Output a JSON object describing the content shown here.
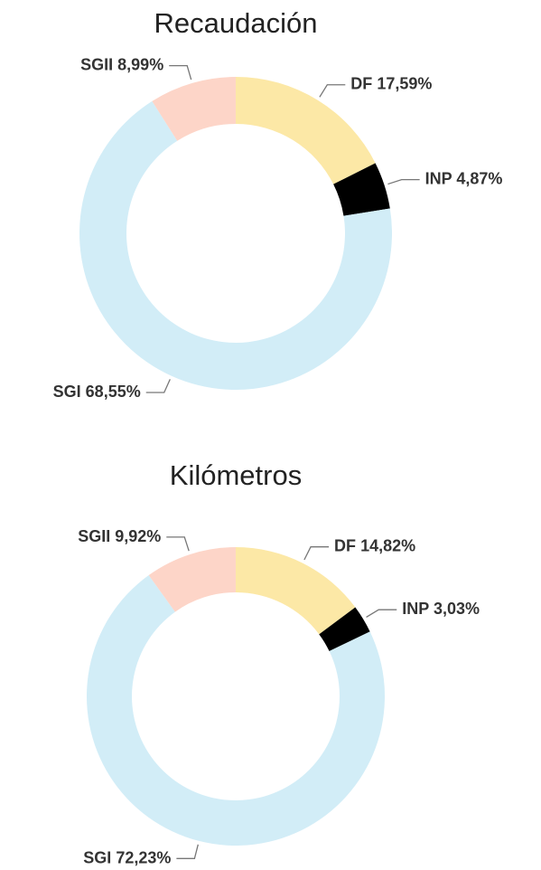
{
  "chart_data": [
    {
      "type": "donut",
      "title": "Recaudación",
      "categories": [
        "DF",
        "INP",
        "SGI",
        "SGII"
      ],
      "values": [
        17.59,
        4.87,
        68.55,
        8.99
      ],
      "value_labels": [
        "17,59%",
        "4,87%",
        "68,55%",
        "8,99%"
      ],
      "colors": [
        "#fce8a6",
        "#000000",
        "#d2edf7",
        "#fdd5c8"
      ]
    },
    {
      "type": "donut",
      "title": "Kilómetros",
      "categories": [
        "DF",
        "INP",
        "SGI",
        "SGII"
      ],
      "values": [
        14.82,
        3.03,
        72.23,
        9.92
      ],
      "value_labels": [
        "14,82%",
        "3,03%",
        "72,23%",
        "9,92%"
      ],
      "colors": [
        "#fce8a6",
        "#000000",
        "#d2edf7",
        "#fdd5c8"
      ]
    }
  ]
}
